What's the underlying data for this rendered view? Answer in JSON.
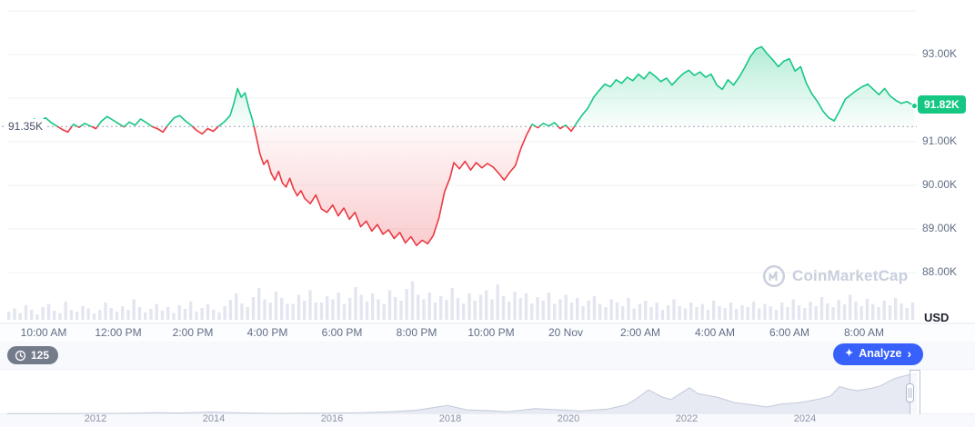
{
  "colors": {
    "green": "#16c784",
    "red": "#ea3943",
    "grid": "#eff2f5",
    "axis_text": "#616e85",
    "volume_bar": "#e3e6f0",
    "baseline_line": "#9aa3b5",
    "price_badge_bg": "#16c784",
    "analyze_bg": "#3861fb",
    "nav_fill": "#e7eaf2",
    "nav_stroke": "#c2cad9",
    "watermark": "#c8cfdd"
  },
  "chart_data": {
    "type": "line",
    "title": "Cryptocurrency price, 24h intraday with volume and multi-year navigator",
    "baseline": {
      "label": "91.35K",
      "value": 91.35
    },
    "current_price": {
      "label": "91.82K",
      "value": 91.82
    },
    "y_axis": {
      "unit": "USD",
      "ticks": [
        {
          "label": "93.00K",
          "value": 93
        },
        {
          "label": "91.00K",
          "value": 91
        },
        {
          "label": "90.00K",
          "value": 90
        },
        {
          "label": "89.00K",
          "value": 89
        },
        {
          "label": "88.00K",
          "value": 88
        }
      ],
      "gridline_values": [
        94,
        93,
        92,
        91,
        90,
        89,
        88
      ]
    },
    "x_axis": {
      "ticks": [
        {
          "label": "10:00 AM",
          "t": 1
        },
        {
          "label": "12:00 PM",
          "t": 3
        },
        {
          "label": "2:00 PM",
          "t": 5
        },
        {
          "label": "4:00 PM",
          "t": 7
        },
        {
          "label": "6:00 PM",
          "t": 9
        },
        {
          "label": "8:00 PM",
          "t": 11
        },
        {
          "label": "10:00 PM",
          "t": 13
        },
        {
          "label": "20 Nov",
          "t": 15
        },
        {
          "label": "2:00 AM",
          "t": 17
        },
        {
          "label": "4:00 AM",
          "t": 19
        },
        {
          "label": "6:00 AM",
          "t": 21
        },
        {
          "label": "8:00 AM",
          "t": 23
        }
      ]
    },
    "series": [
      [
        0,
        91.3
      ],
      [
        0.15,
        91.42
      ],
      [
        0.3,
        91.36
      ],
      [
        0.45,
        91.5
      ],
      [
        0.6,
        91.44
      ],
      [
        0.75,
        91.52
      ],
      [
        0.9,
        91.46
      ],
      [
        1.05,
        91.55
      ],
      [
        1.2,
        91.44
      ],
      [
        1.35,
        91.36
      ],
      [
        1.5,
        91.28
      ],
      [
        1.65,
        91.22
      ],
      [
        1.8,
        91.4
      ],
      [
        1.95,
        91.33
      ],
      [
        2.1,
        91.42
      ],
      [
        2.25,
        91.36
      ],
      [
        2.4,
        91.3
      ],
      [
        2.55,
        91.47
      ],
      [
        2.7,
        91.58
      ],
      [
        2.85,
        91.5
      ],
      [
        3.0,
        91.42
      ],
      [
        3.15,
        91.34
      ],
      [
        3.3,
        91.45
      ],
      [
        3.45,
        91.38
      ],
      [
        3.6,
        91.52
      ],
      [
        3.75,
        91.44
      ],
      [
        3.9,
        91.35
      ],
      [
        4.05,
        91.3
      ],
      [
        4.2,
        91.22
      ],
      [
        4.35,
        91.4
      ],
      [
        4.5,
        91.55
      ],
      [
        4.65,
        91.6
      ],
      [
        4.8,
        91.48
      ],
      [
        4.95,
        91.38
      ],
      [
        5.1,
        91.26
      ],
      [
        5.25,
        91.18
      ],
      [
        5.4,
        91.3
      ],
      [
        5.55,
        91.24
      ],
      [
        5.7,
        91.36
      ],
      [
        5.85,
        91.46
      ],
      [
        6.0,
        91.6
      ],
      [
        6.1,
        91.88
      ],
      [
        6.2,
        92.22
      ],
      [
        6.3,
        92.02
      ],
      [
        6.4,
        92.12
      ],
      [
        6.5,
        91.78
      ],
      [
        6.6,
        91.5
      ],
      [
        6.7,
        91.12
      ],
      [
        6.8,
        90.72
      ],
      [
        6.9,
        90.48
      ],
      [
        7.0,
        90.58
      ],
      [
        7.1,
        90.28
      ],
      [
        7.2,
        90.12
      ],
      [
        7.3,
        90.32
      ],
      [
        7.4,
        90.06
      ],
      [
        7.5,
        89.96
      ],
      [
        7.6,
        90.16
      ],
      [
        7.7,
        89.92
      ],
      [
        7.8,
        89.76
      ],
      [
        7.9,
        89.88
      ],
      [
        8.0,
        89.7
      ],
      [
        8.15,
        89.58
      ],
      [
        8.3,
        89.78
      ],
      [
        8.45,
        89.46
      ],
      [
        8.6,
        89.38
      ],
      [
        8.75,
        89.55
      ],
      [
        8.9,
        89.3
      ],
      [
        9.05,
        89.48
      ],
      [
        9.2,
        89.22
      ],
      [
        9.35,
        89.38
      ],
      [
        9.5,
        89.05
      ],
      [
        9.65,
        89.18
      ],
      [
        9.8,
        88.95
      ],
      [
        9.95,
        89.1
      ],
      [
        10.1,
        88.88
      ],
      [
        10.25,
        88.98
      ],
      [
        10.4,
        88.78
      ],
      [
        10.55,
        88.92
      ],
      [
        10.7,
        88.68
      ],
      [
        10.85,
        88.82
      ],
      [
        11.0,
        88.62
      ],
      [
        11.15,
        88.74
      ],
      [
        11.3,
        88.66
      ],
      [
        11.45,
        88.85
      ],
      [
        11.6,
        89.25
      ],
      [
        11.75,
        89.85
      ],
      [
        11.9,
        90.18
      ],
      [
        12.0,
        90.52
      ],
      [
        12.15,
        90.38
      ],
      [
        12.3,
        90.55
      ],
      [
        12.45,
        90.35
      ],
      [
        12.6,
        90.52
      ],
      [
        12.75,
        90.4
      ],
      [
        12.9,
        90.5
      ],
      [
        13.05,
        90.42
      ],
      [
        13.2,
        90.28
      ],
      [
        13.35,
        90.12
      ],
      [
        13.5,
        90.3
      ],
      [
        13.65,
        90.45
      ],
      [
        13.8,
        90.85
      ],
      [
        13.95,
        91.15
      ],
      [
        14.1,
        91.4
      ],
      [
        14.25,
        91.32
      ],
      [
        14.4,
        91.42
      ],
      [
        14.55,
        91.36
      ],
      [
        14.7,
        91.44
      ],
      [
        14.85,
        91.3
      ],
      [
        15.0,
        91.38
      ],
      [
        15.15,
        91.24
      ],
      [
        15.3,
        91.44
      ],
      [
        15.45,
        91.62
      ],
      [
        15.6,
        91.78
      ],
      [
        15.75,
        92.02
      ],
      [
        15.9,
        92.18
      ],
      [
        16.05,
        92.32
      ],
      [
        16.2,
        92.26
      ],
      [
        16.35,
        92.42
      ],
      [
        16.5,
        92.34
      ],
      [
        16.65,
        92.48
      ],
      [
        16.8,
        92.4
      ],
      [
        16.95,
        92.55
      ],
      [
        17.1,
        92.44
      ],
      [
        17.25,
        92.6
      ],
      [
        17.4,
        92.5
      ],
      [
        17.55,
        92.38
      ],
      [
        17.7,
        92.46
      ],
      [
        17.85,
        92.3
      ],
      [
        18.0,
        92.44
      ],
      [
        18.15,
        92.56
      ],
      [
        18.3,
        92.64
      ],
      [
        18.45,
        92.52
      ],
      [
        18.6,
        92.6
      ],
      [
        18.75,
        92.48
      ],
      [
        18.9,
        92.55
      ],
      [
        19.05,
        92.3
      ],
      [
        19.2,
        92.2
      ],
      [
        19.35,
        92.42
      ],
      [
        19.5,
        92.3
      ],
      [
        19.65,
        92.48
      ],
      [
        19.8,
        92.7
      ],
      [
        19.95,
        92.95
      ],
      [
        20.1,
        93.12
      ],
      [
        20.25,
        93.18
      ],
      [
        20.4,
        93.02
      ],
      [
        20.55,
        92.88
      ],
      [
        20.7,
        92.72
      ],
      [
        20.85,
        92.85
      ],
      [
        21.0,
        92.9
      ],
      [
        21.15,
        92.62
      ],
      [
        21.3,
        92.72
      ],
      [
        21.45,
        92.35
      ],
      [
        21.6,
        92.1
      ],
      [
        21.75,
        91.92
      ],
      [
        21.9,
        91.7
      ],
      [
        22.05,
        91.55
      ],
      [
        22.2,
        91.48
      ],
      [
        22.35,
        91.72
      ],
      [
        22.5,
        91.98
      ],
      [
        22.65,
        92.08
      ],
      [
        22.8,
        92.18
      ],
      [
        22.95,
        92.26
      ],
      [
        23.1,
        92.32
      ],
      [
        23.25,
        92.2
      ],
      [
        23.4,
        92.08
      ],
      [
        23.55,
        92.22
      ],
      [
        23.7,
        92.05
      ],
      [
        23.85,
        91.95
      ],
      [
        24.0,
        91.88
      ],
      [
        24.15,
        91.92
      ],
      [
        24.35,
        91.82
      ]
    ],
    "volume": [
      0.18,
      0.25,
      0.15,
      0.32,
      0.22,
      0.12,
      0.28,
      0.35,
      0.2,
      0.15,
      0.4,
      0.22,
      0.18,
      0.3,
      0.25,
      0.14,
      0.22,
      0.38,
      0.26,
      0.18,
      0.3,
      0.22,
      0.45,
      0.28,
      0.16,
      0.24,
      0.35,
      0.2,
      0.28,
      0.15,
      0.32,
      0.24,
      0.4,
      0.18,
      0.26,
      0.34,
      0.22,
      0.16,
      0.3,
      0.44,
      0.58,
      0.36,
      0.28,
      0.5,
      0.7,
      0.45,
      0.38,
      0.62,
      0.48,
      0.35,
      0.35,
      0.55,
      0.42,
      0.65,
      0.38,
      0.38,
      0.52,
      0.45,
      0.6,
      0.35,
      0.48,
      0.72,
      0.55,
      0.4,
      0.58,
      0.45,
      0.35,
      0.65,
      0.5,
      0.42,
      0.68,
      0.85,
      0.55,
      0.45,
      0.6,
      0.38,
      0.52,
      0.44,
      0.7,
      0.48,
      0.36,
      0.58,
      0.42,
      0.55,
      0.65,
      0.45,
      0.78,
      0.52,
      0.4,
      0.62,
      0.48,
      0.58,
      0.36,
      0.5,
      0.42,
      0.6,
      0.35,
      0.45,
      0.55,
      0.38,
      0.48,
      0.3,
      0.42,
      0.52,
      0.35,
      0.28,
      0.45,
      0.38,
      0.3,
      0.48,
      0.25,
      0.35,
      0.42,
      0.28,
      0.38,
      0.22,
      0.32,
      0.45,
      0.3,
      0.25,
      0.38,
      0.28,
      0.35,
      0.22,
      0.42,
      0.3,
      0.26,
      0.38,
      0.24,
      0.32,
      0.28,
      0.4,
      0.25,
      0.35,
      0.3,
      0.22,
      0.38,
      0.28,
      0.45,
      0.32,
      0.26,
      0.4,
      0.3,
      0.5,
      0.36,
      0.28,
      0.44,
      0.34,
      0.55,
      0.4,
      0.3,
      0.46,
      0.35,
      0.28,
      0.42,
      0.32,
      0.48,
      0.36,
      0.26,
      0.38
    ],
    "navigator": {
      "years": [
        {
          "label": "2012",
          "f": 0.097
        },
        {
          "label": "2014",
          "f": 0.227
        },
        {
          "label": "2016",
          "f": 0.357
        },
        {
          "label": "2018",
          "f": 0.487
        },
        {
          "label": "2020",
          "f": 0.617
        },
        {
          "label": "2022",
          "f": 0.747
        },
        {
          "label": "2024",
          "f": 0.877
        }
      ],
      "points": [
        [
          0,
          0.004
        ],
        [
          0.06,
          0.006
        ],
        [
          0.097,
          0.008
        ],
        [
          0.14,
          0.015
        ],
        [
          0.163,
          0.03
        ],
        [
          0.19,
          0.02
        ],
        [
          0.225,
          0.045
        ],
        [
          0.26,
          0.02
        ],
        [
          0.29,
          0.012
        ],
        [
          0.35,
          0.018
        ],
        [
          0.39,
          0.028
        ],
        [
          0.42,
          0.05
        ],
        [
          0.45,
          0.09
        ],
        [
          0.484,
          0.21
        ],
        [
          0.505,
          0.1
        ],
        [
          0.53,
          0.08
        ],
        [
          0.55,
          0.05
        ],
        [
          0.58,
          0.13
        ],
        [
          0.6,
          0.11
        ],
        [
          0.615,
          0.09
        ],
        [
          0.63,
          0.07
        ],
        [
          0.66,
          0.12
        ],
        [
          0.68,
          0.22
        ],
        [
          0.69,
          0.35
        ],
        [
          0.705,
          0.6
        ],
        [
          0.72,
          0.42
        ],
        [
          0.73,
          0.36
        ],
        [
          0.75,
          0.65
        ],
        [
          0.76,
          0.5
        ],
        [
          0.78,
          0.42
        ],
        [
          0.8,
          0.28
        ],
        [
          0.82,
          0.22
        ],
        [
          0.835,
          0.17
        ],
        [
          0.85,
          0.24
        ],
        [
          0.87,
          0.28
        ],
        [
          0.89,
          0.36
        ],
        [
          0.905,
          0.44
        ],
        [
          0.915,
          0.68
        ],
        [
          0.925,
          0.62
        ],
        [
          0.935,
          0.58
        ],
        [
          0.95,
          0.64
        ],
        [
          0.96,
          0.7
        ],
        [
          0.975,
          0.88
        ],
        [
          0.99,
          0.97
        ],
        [
          1.0,
          1.0
        ]
      ]
    }
  },
  "watermark": {
    "text": "CoinMarketCap"
  },
  "footer": {
    "count_badge": "125",
    "analyze_label": "Analyze",
    "chevron": "›",
    "sparkle": "✦"
  }
}
